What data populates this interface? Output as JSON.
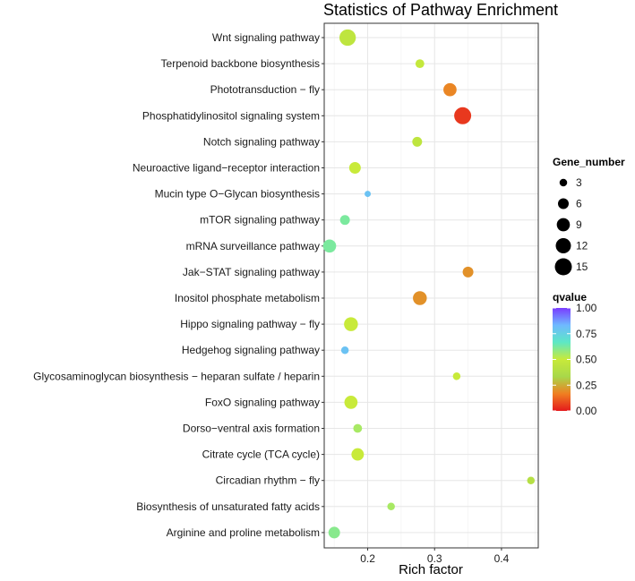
{
  "chart_data": {
    "type": "scatter",
    "title": "Statistics of Pathway Enrichment",
    "xlabel": "Rich factor",
    "ylabel": "",
    "xlim": [
      0.135,
      0.455
    ],
    "xticks": [
      0.2,
      0.3,
      0.4
    ],
    "xtick_labels": [
      "0.2",
      "0.3",
      "0.4"
    ],
    "grid": true,
    "categories": [
      "Wnt signaling pathway",
      "Terpenoid backbone biosynthesis",
      "Phototransduction − fly",
      "Phosphatidylinositol signaling system",
      "Notch signaling pathway",
      "Neuroactive ligand−receptor interaction",
      "Mucin type O−Glycan biosynthesis",
      "mTOR signaling pathway",
      "mRNA surveillance pathway",
      "Jak−STAT signaling pathway",
      "Inositol phosphate metabolism",
      "Hippo signaling pathway − fly",
      "Hedgehog signaling pathway",
      "Glycosaminoglycan biosynthesis − heparan sulfate / heparin",
      "FoxO signaling pathway",
      "Dorso−ventral axis formation",
      "Citrate cycle (TCA cycle)",
      "Circadian rhythm − fly",
      "Biosynthesis of unsaturated fatty acids",
      "Arginine and proline metabolism"
    ],
    "points": [
      {
        "pathway": "Wnt signaling pathway",
        "rich_factor": 0.17,
        "gene_number": 14,
        "qvalue": 0.45
      },
      {
        "pathway": "Terpenoid backbone biosynthesis",
        "rich_factor": 0.278,
        "gene_number": 4,
        "qvalue": 0.48
      },
      {
        "pathway": "Phototransduction − fly",
        "rich_factor": 0.323,
        "gene_number": 9,
        "qvalue": 0.18
      },
      {
        "pathway": "Phosphatidylinositol signaling system",
        "rich_factor": 0.342,
        "gene_number": 15,
        "qvalue": 0.05
      },
      {
        "pathway": "Notch signaling pathway",
        "rich_factor": 0.274,
        "gene_number": 5,
        "qvalue": 0.45
      },
      {
        "pathway": "Neuroactive ligand−receptor interaction",
        "rich_factor": 0.181,
        "gene_number": 7,
        "qvalue": 0.5
      },
      {
        "pathway": "Mucin type O−Glycan biosynthesis",
        "rich_factor": 0.2,
        "gene_number": 2,
        "qvalue": 0.8
      },
      {
        "pathway": "mTOR signaling pathway",
        "rich_factor": 0.166,
        "gene_number": 5,
        "qvalue": 0.62
      },
      {
        "pathway": "mRNA surveillance pathway",
        "rich_factor": 0.143,
        "gene_number": 9,
        "qvalue": 0.62
      },
      {
        "pathway": "Jak−STAT signaling pathway",
        "rich_factor": 0.35,
        "gene_number": 6,
        "qvalue": 0.2
      },
      {
        "pathway": "Inositol phosphate metabolism",
        "rich_factor": 0.278,
        "gene_number": 10,
        "qvalue": 0.2
      },
      {
        "pathway": "Hippo signaling pathway − fly",
        "rich_factor": 0.175,
        "gene_number": 10,
        "qvalue": 0.5
      },
      {
        "pathway": "Hedgehog signaling pathway",
        "rich_factor": 0.166,
        "gene_number": 3,
        "qvalue": 0.8
      },
      {
        "pathway": "Glycosaminoglycan biosynthesis − heparan sulfate / heparin",
        "rich_factor": 0.333,
        "gene_number": 3,
        "qvalue": 0.5
      },
      {
        "pathway": "FoxO signaling pathway",
        "rich_factor": 0.175,
        "gene_number": 9,
        "qvalue": 0.5
      },
      {
        "pathway": "Dorso−ventral axis formation",
        "rich_factor": 0.185,
        "gene_number": 4,
        "qvalue": 0.55
      },
      {
        "pathway": "Citrate cycle (TCA cycle)",
        "rich_factor": 0.185,
        "gene_number": 8,
        "qvalue": 0.5
      },
      {
        "pathway": "Circadian rhythm − fly",
        "rich_factor": 0.444,
        "gene_number": 3,
        "qvalue": 0.4
      },
      {
        "pathway": "Biosynthesis of unsaturated fatty acids",
        "rich_factor": 0.235,
        "gene_number": 3,
        "qvalue": 0.55
      },
      {
        "pathway": "Arginine and proline metabolism",
        "rich_factor": 0.15,
        "gene_number": 7,
        "qvalue": 0.6
      }
    ],
    "size_legend": {
      "title": "Gene_number",
      "values": [
        3,
        6,
        9,
        12,
        15
      ],
      "labels": [
        "3",
        "6",
        "9",
        "12",
        "15"
      ]
    },
    "color_legend": {
      "title": "qvalue",
      "range": [
        0,
        1
      ],
      "ticks": [
        1.0,
        0.75,
        0.5,
        0.25,
        0.0
      ],
      "tick_labels": [
        "1.00",
        "0.75",
        "0.50",
        "0.25",
        "0.00"
      ],
      "gradient_colors": [
        "#e41a1c",
        "#f07f21",
        "#a8d84a",
        "#c8ea3a",
        "#5de8c5",
        "#6fb9ff",
        "#7a3cff"
      ]
    },
    "colors": {
      "panel_background": "#ffffff",
      "panel_border": "#333333",
      "grid_major": "#e6e6e6",
      "grid_minor": "#f2f2f2"
    }
  }
}
